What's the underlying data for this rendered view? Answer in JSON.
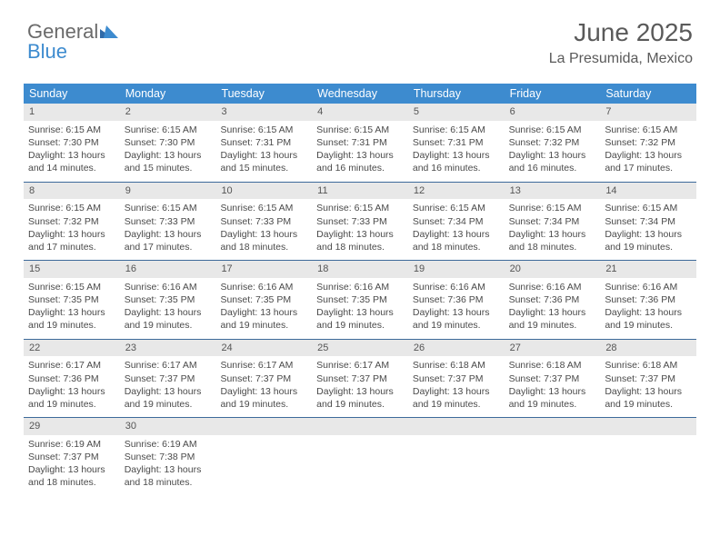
{
  "logo": {
    "line1": "General",
    "line2": "Blue"
  },
  "header": {
    "month": "June 2025",
    "location": "La Presumida, Mexico"
  },
  "colors": {
    "header_bg": "#3d8bcf",
    "header_fg": "#ffffff",
    "daynum_bg": "#e8e8e8",
    "week_border": "#3d6a9a",
    "text": "#4a4a4a",
    "title_text": "#5a5a5a",
    "logo_gray": "#6a6a6a",
    "logo_blue": "#3d8bcf"
  },
  "day_headers": [
    "Sunday",
    "Monday",
    "Tuesday",
    "Wednesday",
    "Thursday",
    "Friday",
    "Saturday"
  ],
  "weeks": [
    [
      {
        "n": "1",
        "sr": "Sunrise: 6:15 AM",
        "ss": "Sunset: 7:30 PM",
        "d1": "Daylight: 13 hours",
        "d2": "and 14 minutes."
      },
      {
        "n": "2",
        "sr": "Sunrise: 6:15 AM",
        "ss": "Sunset: 7:30 PM",
        "d1": "Daylight: 13 hours",
        "d2": "and 15 minutes."
      },
      {
        "n": "3",
        "sr": "Sunrise: 6:15 AM",
        "ss": "Sunset: 7:31 PM",
        "d1": "Daylight: 13 hours",
        "d2": "and 15 minutes."
      },
      {
        "n": "4",
        "sr": "Sunrise: 6:15 AM",
        "ss": "Sunset: 7:31 PM",
        "d1": "Daylight: 13 hours",
        "d2": "and 16 minutes."
      },
      {
        "n": "5",
        "sr": "Sunrise: 6:15 AM",
        "ss": "Sunset: 7:31 PM",
        "d1": "Daylight: 13 hours",
        "d2": "and 16 minutes."
      },
      {
        "n": "6",
        "sr": "Sunrise: 6:15 AM",
        "ss": "Sunset: 7:32 PM",
        "d1": "Daylight: 13 hours",
        "d2": "and 16 minutes."
      },
      {
        "n": "7",
        "sr": "Sunrise: 6:15 AM",
        "ss": "Sunset: 7:32 PM",
        "d1": "Daylight: 13 hours",
        "d2": "and 17 minutes."
      }
    ],
    [
      {
        "n": "8",
        "sr": "Sunrise: 6:15 AM",
        "ss": "Sunset: 7:32 PM",
        "d1": "Daylight: 13 hours",
        "d2": "and 17 minutes."
      },
      {
        "n": "9",
        "sr": "Sunrise: 6:15 AM",
        "ss": "Sunset: 7:33 PM",
        "d1": "Daylight: 13 hours",
        "d2": "and 17 minutes."
      },
      {
        "n": "10",
        "sr": "Sunrise: 6:15 AM",
        "ss": "Sunset: 7:33 PM",
        "d1": "Daylight: 13 hours",
        "d2": "and 18 minutes."
      },
      {
        "n": "11",
        "sr": "Sunrise: 6:15 AM",
        "ss": "Sunset: 7:33 PM",
        "d1": "Daylight: 13 hours",
        "d2": "and 18 minutes."
      },
      {
        "n": "12",
        "sr": "Sunrise: 6:15 AM",
        "ss": "Sunset: 7:34 PM",
        "d1": "Daylight: 13 hours",
        "d2": "and 18 minutes."
      },
      {
        "n": "13",
        "sr": "Sunrise: 6:15 AM",
        "ss": "Sunset: 7:34 PM",
        "d1": "Daylight: 13 hours",
        "d2": "and 18 minutes."
      },
      {
        "n": "14",
        "sr": "Sunrise: 6:15 AM",
        "ss": "Sunset: 7:34 PM",
        "d1": "Daylight: 13 hours",
        "d2": "and 19 minutes."
      }
    ],
    [
      {
        "n": "15",
        "sr": "Sunrise: 6:15 AM",
        "ss": "Sunset: 7:35 PM",
        "d1": "Daylight: 13 hours",
        "d2": "and 19 minutes."
      },
      {
        "n": "16",
        "sr": "Sunrise: 6:16 AM",
        "ss": "Sunset: 7:35 PM",
        "d1": "Daylight: 13 hours",
        "d2": "and 19 minutes."
      },
      {
        "n": "17",
        "sr": "Sunrise: 6:16 AM",
        "ss": "Sunset: 7:35 PM",
        "d1": "Daylight: 13 hours",
        "d2": "and 19 minutes."
      },
      {
        "n": "18",
        "sr": "Sunrise: 6:16 AM",
        "ss": "Sunset: 7:35 PM",
        "d1": "Daylight: 13 hours",
        "d2": "and 19 minutes."
      },
      {
        "n": "19",
        "sr": "Sunrise: 6:16 AM",
        "ss": "Sunset: 7:36 PM",
        "d1": "Daylight: 13 hours",
        "d2": "and 19 minutes."
      },
      {
        "n": "20",
        "sr": "Sunrise: 6:16 AM",
        "ss": "Sunset: 7:36 PM",
        "d1": "Daylight: 13 hours",
        "d2": "and 19 minutes."
      },
      {
        "n": "21",
        "sr": "Sunrise: 6:16 AM",
        "ss": "Sunset: 7:36 PM",
        "d1": "Daylight: 13 hours",
        "d2": "and 19 minutes."
      }
    ],
    [
      {
        "n": "22",
        "sr": "Sunrise: 6:17 AM",
        "ss": "Sunset: 7:36 PM",
        "d1": "Daylight: 13 hours",
        "d2": "and 19 minutes."
      },
      {
        "n": "23",
        "sr": "Sunrise: 6:17 AM",
        "ss": "Sunset: 7:37 PM",
        "d1": "Daylight: 13 hours",
        "d2": "and 19 minutes."
      },
      {
        "n": "24",
        "sr": "Sunrise: 6:17 AM",
        "ss": "Sunset: 7:37 PM",
        "d1": "Daylight: 13 hours",
        "d2": "and 19 minutes."
      },
      {
        "n": "25",
        "sr": "Sunrise: 6:17 AM",
        "ss": "Sunset: 7:37 PM",
        "d1": "Daylight: 13 hours",
        "d2": "and 19 minutes."
      },
      {
        "n": "26",
        "sr": "Sunrise: 6:18 AM",
        "ss": "Sunset: 7:37 PM",
        "d1": "Daylight: 13 hours",
        "d2": "and 19 minutes."
      },
      {
        "n": "27",
        "sr": "Sunrise: 6:18 AM",
        "ss": "Sunset: 7:37 PM",
        "d1": "Daylight: 13 hours",
        "d2": "and 19 minutes."
      },
      {
        "n": "28",
        "sr": "Sunrise: 6:18 AM",
        "ss": "Sunset: 7:37 PM",
        "d1": "Daylight: 13 hours",
        "d2": "and 19 minutes."
      }
    ],
    [
      {
        "n": "29",
        "sr": "Sunrise: 6:19 AM",
        "ss": "Sunset: 7:37 PM",
        "d1": "Daylight: 13 hours",
        "d2": "and 18 minutes."
      },
      {
        "n": "30",
        "sr": "Sunrise: 6:19 AM",
        "ss": "Sunset: 7:38 PM",
        "d1": "Daylight: 13 hours",
        "d2": "and 18 minutes."
      },
      {
        "empty": true
      },
      {
        "empty": true
      },
      {
        "empty": true
      },
      {
        "empty": true
      },
      {
        "empty": true
      }
    ]
  ]
}
